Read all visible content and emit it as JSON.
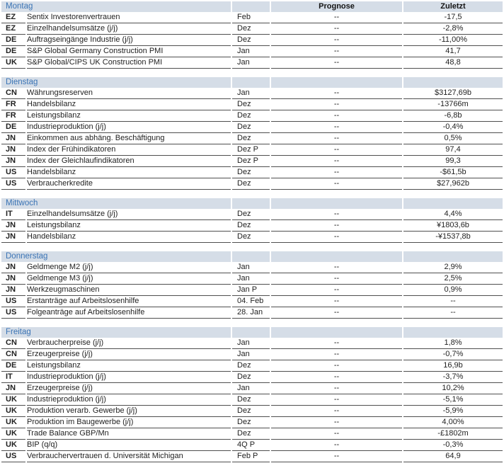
{
  "table": {
    "columns": {
      "prognose": "Prognose",
      "zuletzt": "Zuletzt"
    },
    "colors": {
      "band_background": "#d5dde7",
      "day_label_blue": "#3b74b5",
      "row_rule_gray": "#4f4f4f",
      "text": "#1f1f1f"
    },
    "sections": [
      {
        "day": "Montag",
        "rows": [
          {
            "country": "EZ",
            "indicator": "Sentix Investorenvertrauen",
            "period": "Feb",
            "prognose": "--",
            "zuletzt": "-17,5"
          },
          {
            "country": "EZ",
            "indicator": "Einzelhandelsumsätze (j/j)",
            "period": "Dez",
            "prognose": "--",
            "zuletzt": "-2,8%"
          },
          {
            "country": "DE",
            "indicator": "Auftragseingänge Industrie (j/j)",
            "period": "Dez",
            "prognose": "--",
            "zuletzt": "-11,00%"
          },
          {
            "country": "DE",
            "indicator": "S&P Global Germany Construction PMI",
            "period": "Jan",
            "prognose": "--",
            "zuletzt": "41,7"
          },
          {
            "country": "UK",
            "indicator": "S&P Global/CIPS UK Construction PMI",
            "period": "Jan",
            "prognose": "--",
            "zuletzt": "48,8"
          }
        ]
      },
      {
        "day": "Dienstag",
        "rows": [
          {
            "country": "CN",
            "indicator": "Währungsreserven",
            "period": "Jan",
            "prognose": "--",
            "zuletzt": "$3127,69b"
          },
          {
            "country": "FR",
            "indicator": "Handelsbilanz",
            "period": "Dez",
            "prognose": "--",
            "zuletzt": "-13766m"
          },
          {
            "country": "FR",
            "indicator": "Leistungsbilanz",
            "period": "Dez",
            "prognose": "--",
            "zuletzt": "-6,8b"
          },
          {
            "country": "DE",
            "indicator": "Industrieproduktion (j/j)",
            "period": "Dez",
            "prognose": "--",
            "zuletzt": "-0,4%"
          },
          {
            "country": "JN",
            "indicator": "Einkommen aus abhäng. Beschäftigung",
            "period": "Dez",
            "prognose": "--",
            "zuletzt": "0,5%"
          },
          {
            "country": "JN",
            "indicator": "Index der Frühindikatoren",
            "period": "Dez P",
            "prognose": "--",
            "zuletzt": "97,4"
          },
          {
            "country": "JN",
            "indicator": "Index der Gleichlaufindikatoren",
            "period": "Dez P",
            "prognose": "--",
            "zuletzt": "99,3"
          },
          {
            "country": "US",
            "indicator": "Handelsbilanz",
            "period": "Dez",
            "prognose": "--",
            "zuletzt": "-$61,5b"
          },
          {
            "country": "US",
            "indicator": "Verbraucherkredite",
            "period": "Dez",
            "prognose": "--",
            "zuletzt": "$27,962b"
          }
        ]
      },
      {
        "day": "Mittwoch",
        "rows": [
          {
            "country": "IT",
            "indicator": "Einzelhandelsumsätze (j/j)",
            "period": "Dez",
            "prognose": "--",
            "zuletzt": "4,4%"
          },
          {
            "country": "JN",
            "indicator": "Leistungsbilanz",
            "period": "Dez",
            "prognose": "--",
            "zuletzt": "¥1803,6b"
          },
          {
            "country": "JN",
            "indicator": "Handelsbilanz",
            "period": "Dez",
            "prognose": "--",
            "zuletzt": "-¥1537,8b"
          }
        ]
      },
      {
        "day": "Donnerstag",
        "rows": [
          {
            "country": "JN",
            "indicator": "Geldmenge M2 (j/j)",
            "period": "Jan",
            "prognose": "--",
            "zuletzt": "2,9%"
          },
          {
            "country": "JN",
            "indicator": "Geldmenge M3 (j/j)",
            "period": "Jan",
            "prognose": "--",
            "zuletzt": "2,5%"
          },
          {
            "country": "JN",
            "indicator": "Werkzeugmaschinen",
            "period": "Jan P",
            "prognose": "--",
            "zuletzt": "0,9%"
          },
          {
            "country": "US",
            "indicator": "Erstanträge auf Arbeitslosenhilfe",
            "period": "04. Feb",
            "prognose": "--",
            "zuletzt": "--"
          },
          {
            "country": "US",
            "indicator": "Folgeanträge auf Arbeitslosenhilfe",
            "period": "28. Jan",
            "prognose": "--",
            "zuletzt": "--"
          }
        ]
      },
      {
        "day": "Freitag",
        "rows": [
          {
            "country": "CN",
            "indicator": "Verbraucherpreise (j/j)",
            "period": "Jan",
            "prognose": "--",
            "zuletzt": "1,8%"
          },
          {
            "country": "CN",
            "indicator": "Erzeugerpreise (j/j)",
            "period": "Jan",
            "prognose": "--",
            "zuletzt": "-0,7%"
          },
          {
            "country": "DE",
            "indicator": "Leistungsbilanz",
            "period": "Dez",
            "prognose": "--",
            "zuletzt": "16,9b"
          },
          {
            "country": "IT",
            "indicator": "Industrieproduktion (j/j)",
            "period": "Dez",
            "prognose": "--",
            "zuletzt": "-3,7%"
          },
          {
            "country": "JN",
            "indicator": "Erzeugerpreise (j/j)",
            "period": "Jan",
            "prognose": "--",
            "zuletzt": "10,2%"
          },
          {
            "country": "UK",
            "indicator": "Industrieproduktion (j/j)",
            "period": "Dez",
            "prognose": "--",
            "zuletzt": "-5,1%"
          },
          {
            "country": "UK",
            "indicator": "Produktion verarb. Gewerbe (j/j)",
            "period": "Dez",
            "prognose": "--",
            "zuletzt": "-5,9%"
          },
          {
            "country": "UK",
            "indicator": "Produktion im Baugewerbe (j/j)",
            "period": "Dez",
            "prognose": "--",
            "zuletzt": "4,00%"
          },
          {
            "country": "UK",
            "indicator": "Trade Balance GBP/Mn",
            "period": "Dez",
            "prognose": "--",
            "zuletzt": "-£1802m"
          },
          {
            "country": "UK",
            "indicator": "BIP (q/q)",
            "period": "4Q P",
            "prognose": "--",
            "zuletzt": "-0,3%"
          },
          {
            "country": "US",
            "indicator": "Verbrauchervertrauen d. Universität Michigan",
            "period": "Feb P",
            "prognose": "--",
            "zuletzt": "64,9"
          }
        ]
      }
    ]
  }
}
